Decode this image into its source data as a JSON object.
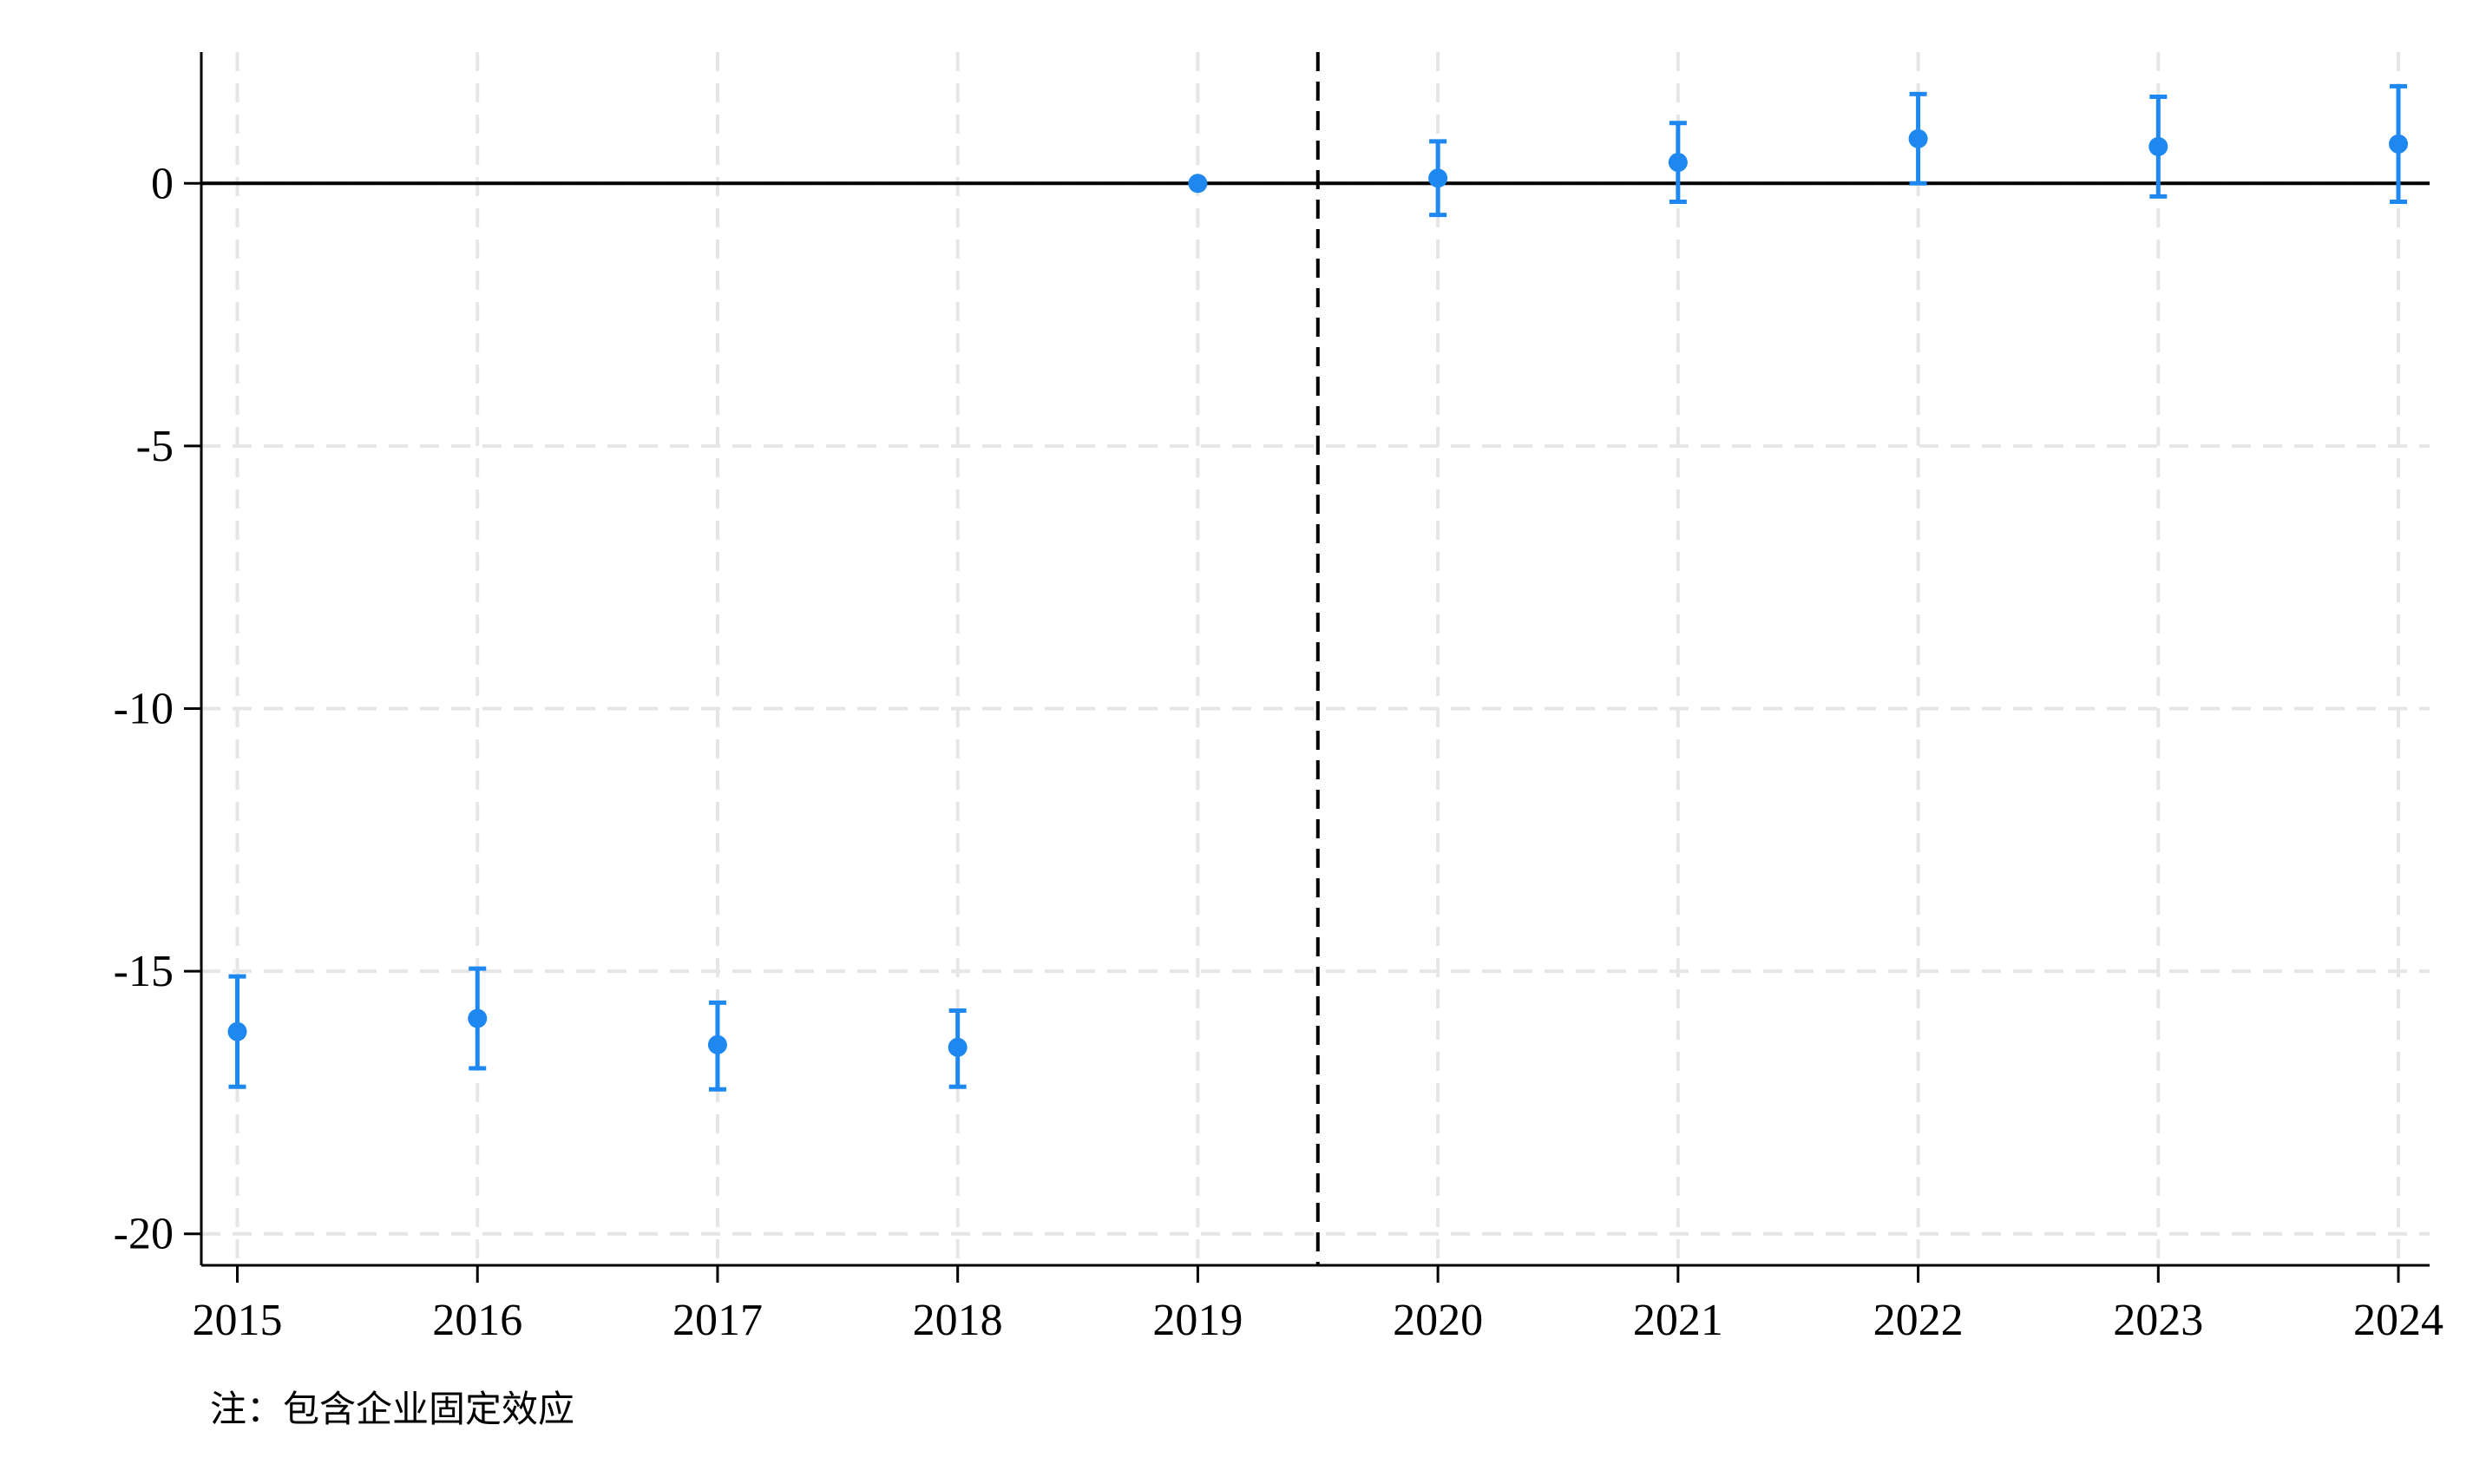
{
  "colors": {
    "marker": "#1e88f0",
    "axis": "#000000",
    "grid": "#e6e6e6",
    "zero_line": "#000000",
    "event_line": "#000000"
  },
  "note": "注：包含企业固定效应",
  "chart_data": {
    "type": "scatter",
    "title": "",
    "xlabel": "",
    "ylabel": "",
    "x": [
      2015,
      2016,
      2017,
      2018,
      2019,
      2020,
      2021,
      2022,
      2023,
      2024
    ],
    "series": [
      {
        "values": [
          -16.15,
          -15.9,
          -16.4,
          -16.45,
          0.0,
          0.1,
          0.4,
          0.85,
          0.7,
          0.75
        ],
        "ci_low": [
          -17.2,
          -16.85,
          -17.25,
          -17.2,
          0.0,
          -0.6,
          -0.35,
          0.0,
          -0.25,
          -0.35
        ],
        "ci_high": [
          -15.1,
          -14.95,
          -15.6,
          -15.75,
          0.0,
          0.8,
          1.15,
          1.7,
          1.65,
          1.85
        ]
      }
    ],
    "xlim": [
      2014.85,
      2024.13
    ],
    "ylim": [
      -20.6,
      2.5
    ],
    "x_ticks": [
      "2015",
      "2016",
      "2017",
      "2018",
      "2019",
      "2020",
      "2021",
      "2022",
      "2023",
      "2024"
    ],
    "y_ticks": [
      0,
      -5,
      -10,
      -15,
      -20
    ],
    "y_tick_labels": [
      "0",
      "-5",
      "-10",
      "-15",
      "-20"
    ],
    "reference_line_y": 0,
    "event_line_x": 2019.5,
    "grid": true,
    "legend": "none"
  }
}
